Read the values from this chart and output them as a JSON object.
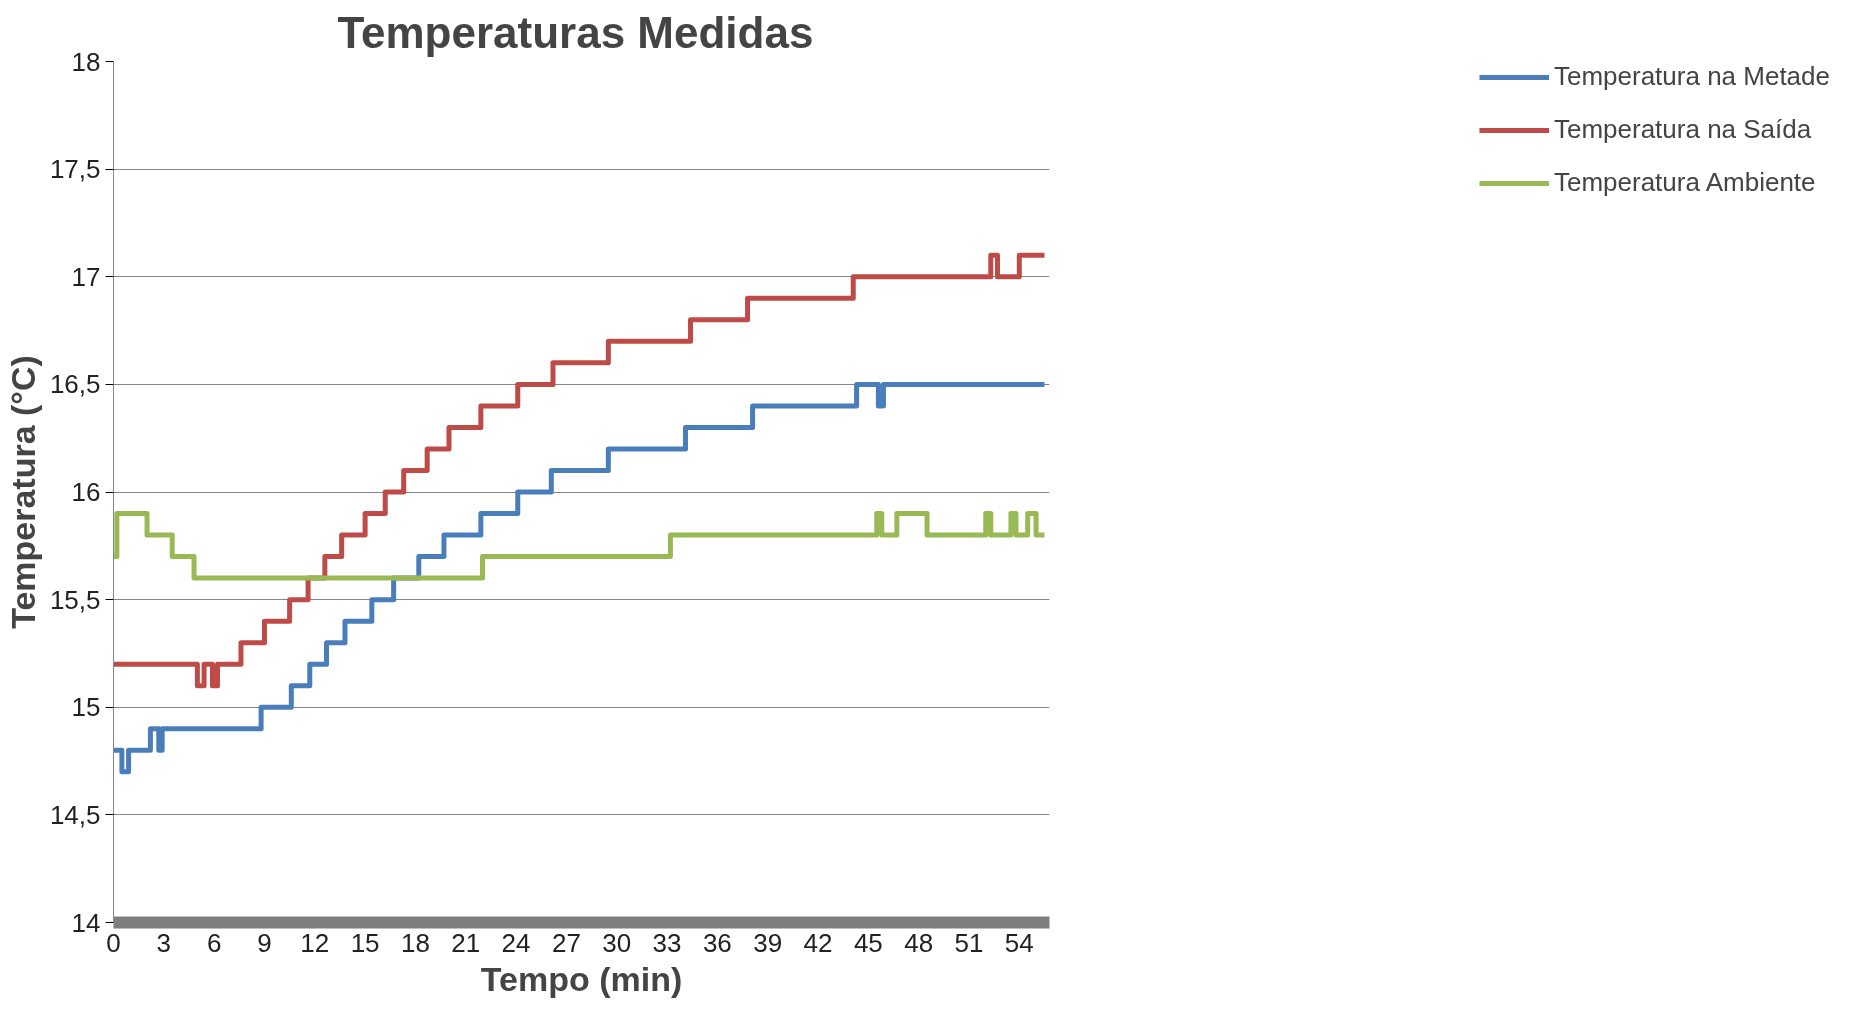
{
  "chart_data": {
    "type": "line",
    "title": "Temperaturas  Medidas",
    "xlabel": "Tempo (min)",
    "ylabel": "Temperatura (°C)",
    "xlim": [
      0,
      55.8
    ],
    "xticks": [
      0,
      3,
      6,
      9,
      12,
      15,
      18,
      21,
      24,
      27,
      30,
      33,
      36,
      39,
      42,
      45,
      48,
      51,
      54
    ],
    "ylim": [
      14,
      18
    ],
    "yticks": [
      14,
      {
        "value": 14.5,
        "label": "14,5"
      },
      15,
      {
        "value": 15.5,
        "label": "15,5"
      },
      16,
      {
        "value": 16.5,
        "label": "16,5"
      },
      17,
      {
        "value": 17.5,
        "label": "17,5"
      },
      18
    ],
    "grid": "y",
    "legend": "right",
    "marker": "none",
    "line_style": "solid",
    "series": [
      {
        "name": "Temperatura na Metade",
        "color": "#4a7ebb",
        "x": [
          0,
          0.5,
          0.5,
          0.9,
          0.9,
          2.2,
          2.2,
          2.7,
          2.7,
          2.9,
          2.9,
          8.8,
          8.8,
          10.6,
          10.6,
          11.7,
          11.7,
          12.7,
          12.7,
          13.8,
          13.8,
          15.4,
          15.4,
          16.7,
          16.7,
          18.2,
          18.2,
          19.7,
          19.7,
          21.9,
          21.9,
          24.1,
          24.1,
          26.1,
          26.1,
          29.5,
          29.5,
          34.1,
          34.1,
          38.1,
          38.1,
          44.3,
          44.3,
          45.6,
          45.6,
          45.9,
          45.9,
          55.5
        ],
        "values": [
          14.8,
          14.8,
          14.7,
          14.7,
          14.8,
          14.8,
          14.9,
          14.9,
          14.8,
          14.8,
          14.9,
          14.9,
          15.0,
          15.0,
          15.1,
          15.1,
          15.2,
          15.2,
          15.3,
          15.3,
          15.4,
          15.4,
          15.5,
          15.5,
          15.6,
          15.6,
          15.7,
          15.7,
          15.8,
          15.8,
          15.9,
          15.9,
          16.0,
          16.0,
          16.1,
          16.1,
          16.2,
          16.2,
          16.3,
          16.3,
          16.4,
          16.4,
          16.5,
          16.5,
          16.4,
          16.4,
          16.5,
          16.5
        ]
      },
      {
        "name": "Temperatura na Saída",
        "color": "#be4b48",
        "x": [
          0,
          5.0,
          5.0,
          5.4,
          5.4,
          5.9,
          5.9,
          6.2,
          6.2,
          7.6,
          7.6,
          9.0,
          9.0,
          10.5,
          10.5,
          11.6,
          11.6,
          12.6,
          12.6,
          13.6,
          13.6,
          15.0,
          15.0,
          16.2,
          16.2,
          17.3,
          17.3,
          18.7,
          18.7,
          20.0,
          20.0,
          21.9,
          21.9,
          24.1,
          24.1,
          26.2,
          26.2,
          29.5,
          29.5,
          34.4,
          34.4,
          37.8,
          37.8,
          44.1,
          44.1,
          52.3,
          52.3,
          52.7,
          52.7,
          54.0,
          54.0,
          55.5
        ],
        "values": [
          15.2,
          15.2,
          15.1,
          15.1,
          15.2,
          15.2,
          15.1,
          15.1,
          15.2,
          15.2,
          15.3,
          15.3,
          15.4,
          15.4,
          15.5,
          15.5,
          15.6,
          15.6,
          15.7,
          15.7,
          15.8,
          15.8,
          15.9,
          15.9,
          16.0,
          16.0,
          16.1,
          16.1,
          16.2,
          16.2,
          16.3,
          16.3,
          16.4,
          16.4,
          16.5,
          16.5,
          16.6,
          16.6,
          16.7,
          16.7,
          16.8,
          16.8,
          16.9,
          16.9,
          17.0,
          17.0,
          17.1,
          17.1,
          17.0,
          17.0,
          17.1,
          17.1
        ]
      },
      {
        "name": "Temperatura Ambiente",
        "color": "#98b954",
        "x": [
          0,
          0.2,
          0.2,
          2.0,
          2.0,
          3.5,
          3.5,
          4.8,
          4.8,
          22.0,
          22.0,
          33.2,
          33.2,
          45.5,
          45.5,
          45.8,
          45.8,
          46.7,
          46.7,
          48.5,
          48.5,
          52.0,
          52.0,
          52.3,
          52.3,
          53.5,
          53.5,
          53.8,
          53.8,
          54.5,
          54.5,
          55.0,
          55.0,
          55.5
        ],
        "values": [
          15.7,
          15.7,
          15.9,
          15.9,
          15.8,
          15.8,
          15.7,
          15.7,
          15.6,
          15.6,
          15.7,
          15.7,
          15.8,
          15.8,
          15.9,
          15.9,
          15.8,
          15.8,
          15.9,
          15.9,
          15.8,
          15.8,
          15.9,
          15.9,
          15.8,
          15.8,
          15.9,
          15.9,
          15.8,
          15.8,
          15.9,
          15.9,
          15.8,
          15.8
        ]
      }
    ]
  }
}
